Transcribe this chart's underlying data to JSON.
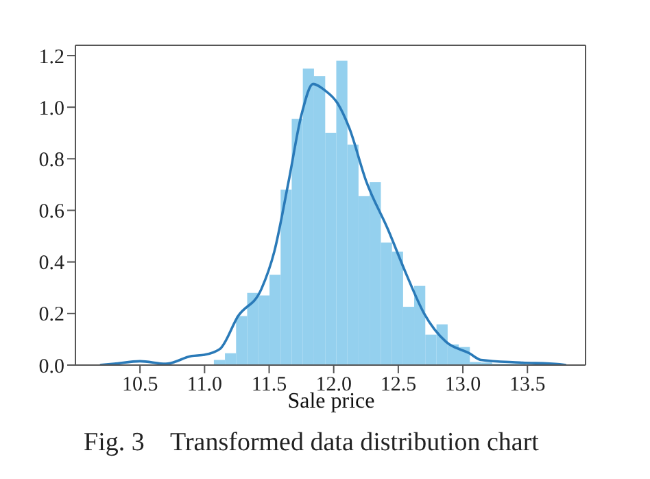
{
  "chart_data": {
    "type": "histogram",
    "xlabel": "Sale price",
    "annotations": [
      "Fig. 3    Transformed data distribution chart"
    ],
    "bins": [
      11.072,
      11.158,
      11.244,
      11.33,
      11.416,
      11.503,
      11.589,
      11.675,
      11.761,
      11.847,
      11.934,
      12.02,
      12.106,
      12.192,
      12.278,
      12.365,
      12.451,
      12.537,
      12.623,
      12.709,
      12.796,
      12.882,
      12.968,
      13.054,
      13.14,
      13.227,
      13.313,
      13.399,
      13.485
    ],
    "values": [
      0.02,
      0.046,
      0.19,
      0.28,
      0.27,
      0.35,
      0.68,
      0.955,
      1.15,
      1.12,
      0.9,
      1.18,
      0.855,
      0.655,
      0.71,
      0.475,
      0.44,
      0.226,
      0.307,
      0.118,
      0.158,
      0.08,
      0.07,
      0.012,
      0.01,
      0.005,
      0.005,
      0.005
    ],
    "color": "#94d0ee",
    "series": [
      {
        "type": "line",
        "color": "#2a7ab8",
        "x": [
          10.19,
          10.3,
          10.5,
          10.7,
          10.9,
          11.0,
          11.12,
          11.26,
          11.44,
          11.54,
          11.65,
          11.75,
          11.84,
          11.93,
          12.03,
          12.12,
          12.25,
          12.42,
          12.56,
          12.7,
          12.87,
          13.05,
          13.14,
          13.44,
          13.75,
          13.8
        ],
        "values": [
          0,
          0.005,
          0.015,
          0.005,
          0.035,
          0.04,
          0.063,
          0.19,
          0.295,
          0.44,
          0.71,
          0.97,
          1.09,
          1.066,
          1.015,
          0.92,
          0.715,
          0.526,
          0.355,
          0.2,
          0.09,
          0.046,
          0.02,
          0.01,
          0.003,
          0
        ]
      }
    ],
    "xlim": [
      10.0,
      13.95
    ],
    "ylim": [
      0,
      1.24
    ],
    "xticks": [
      {
        "value": 10.5,
        "label": "10.5"
      },
      {
        "value": 11,
        "label": "11.0"
      },
      {
        "value": 11.5,
        "label": "11.5"
      },
      {
        "value": 12,
        "label": "12.0"
      },
      {
        "value": 12.5,
        "label": "12.5"
      },
      {
        "value": 13,
        "label": "13.0"
      },
      {
        "value": 13.5,
        "label": "13.5"
      }
    ],
    "yticks": [
      {
        "value": 0,
        "label": "0.0"
      },
      {
        "value": 0.2,
        "label": "0.2"
      },
      {
        "value": 0.4,
        "label": "0.4"
      },
      {
        "value": 0.6,
        "label": "0.6"
      },
      {
        "value": 0.8,
        "label": "0.8"
      },
      {
        "value": 1,
        "label": "1.0"
      },
      {
        "value": 1.2,
        "label": "1.2"
      }
    ],
    "grid": false,
    "legend": false,
    "marker": "none",
    "line_style": "solid"
  }
}
